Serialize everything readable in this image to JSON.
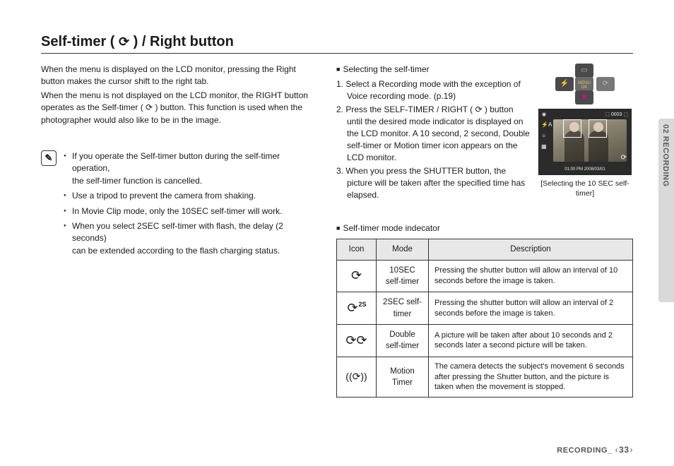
{
  "page": {
    "title_prefix": "Self-timer ( ",
    "title_icon": "⟳",
    "title_suffix": " ) / Right button",
    "footer_label": "RECORDING_",
    "page_number": "33",
    "side_tab": "02 RECORDING"
  },
  "left": {
    "intro_1": "When the menu is displayed on the LCD monitor, pressing the Right button makes the cursor shift to the right tab.",
    "intro_2": "When the menu is not displayed on the LCD monitor, the RIGHT button operates as the Self-timer ( ⟳ ) button. This function is used when the photographer would also like to be in the image.",
    "note_icon": "✎",
    "notes": {
      "n1a": "If you operate the Self-timer button during the self-timer operation,",
      "n1b": "the self-timer function is cancelled.",
      "n2": "Use a tripod to prevent the camera from shaking.",
      "n3": "In Movie Clip mode, only the 10SEC self-timer will work.",
      "n4a": "When you select 2SEC self-timer with flash, the delay (2 seconds)",
      "n4b": "can be extended according to the flash charging status."
    }
  },
  "right": {
    "section_label": "Selecting the self-timer",
    "steps": {
      "s1": "1. Select a Recording mode with the exception of Voice recording mode. (p.19)",
      "s2": "2. Press the SELF-TIMER / RIGHT ( ⟳ ) button until the desired mode indicator is displayed on the LCD monitor. A 10 second, 2 second, Double self-timer or Motion timer icon appears on the LCD monitor.",
      "s3": "3. When you press the SHUTTER button, the picture will be taken after the specified time has elapsed."
    },
    "dpad": {
      "up": "▭",
      "left": "⚡",
      "mid": "MENU\nOK",
      "down": "❀",
      "right": "⟳"
    },
    "lcd": {
      "top_left": "◉",
      "top_right": "⬚ 0003 ⬚",
      "side_icons": {
        "a": "⚡A",
        "b": "☼",
        "c": "▦"
      },
      "timer_icon": "⟳",
      "bottom": "01:00 PM\n2008/03/01"
    },
    "caption": "[Selecting the 10 SEC self-timer]",
    "indicator_title": "Self-timer mode indecator",
    "table": {
      "headers": {
        "icon": "Icon",
        "mode": "Mode",
        "desc": "Description"
      },
      "rows": [
        {
          "icon": "⟳",
          "badge": "",
          "mode": "10SEC self-timer",
          "desc": "Pressing the shutter button will allow an interval of 10 seconds before the image is taken."
        },
        {
          "icon": "⟳",
          "badge": "2S",
          "mode": "2SEC self-timer",
          "desc": "Pressing the shutter button will allow an interval of 2 seconds before the image is taken."
        },
        {
          "icon": "⟳⟳",
          "badge": "",
          "mode": "Double self-timer",
          "desc": "A picture will be taken after about 10 seconds and 2 seconds later a second picture will be taken."
        },
        {
          "icon": "((⟳))",
          "badge": "",
          "mode": "Motion Timer",
          "desc": "The camera detects the subject's movement 6 seconds after pressing the Shutter button, and the picture is taken when the movement is stopped."
        }
      ]
    }
  }
}
